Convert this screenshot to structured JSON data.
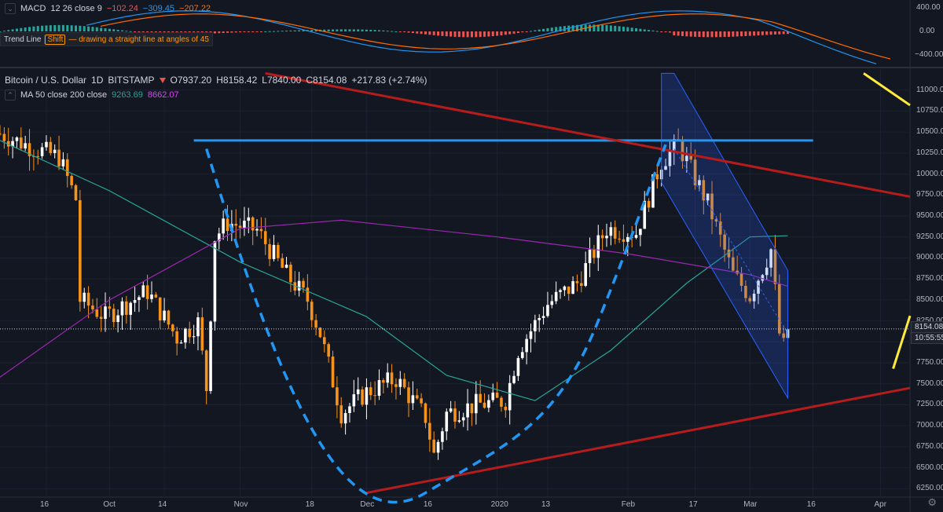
{
  "macd": {
    "name": "MACD",
    "params": "12 26 close 9",
    "v_hist": "−102.24",
    "v_macd": "−309.45",
    "v_signal": "−207.22",
    "axis": [
      "400.00",
      "0.00",
      "−400.00"
    ]
  },
  "hint": {
    "tool": "Trend Line",
    "key": "Shift",
    "text": "— drawing a straight line at angles of 45"
  },
  "symbol": {
    "title": "Bitcoin / U.S. Dollar",
    "interval": "1D",
    "exchange": "BITSTAMP",
    "open": "O7937.20",
    "high": "H8158.42",
    "low": "L7840.00",
    "close": "C8154.08",
    "change": "+217.83 (+2.74%)"
  },
  "ma": {
    "label": "MA 50 close 200 close",
    "v50": "9263.69",
    "v200": "8662.07"
  },
  "price_axis": [
    "11000.00",
    "10750.00",
    "10500.00",
    "10250.00",
    "10000.00",
    "9750.00",
    "9500.00",
    "9250.00",
    "9000.00",
    "8750.00",
    "8500.00",
    "8250.00",
    "8000.00",
    "7750.00",
    "7500.00",
    "7250.00",
    "7000.00",
    "6750.00",
    "6500.00",
    "6250.00"
  ],
  "last_price": "8154.08",
  "countdown": "10:55:55",
  "time_axis": [
    "16",
    "Oct",
    "14",
    "Nov",
    "18",
    "Dec",
    "16",
    "2020",
    "13",
    "Feb",
    "17",
    "Mar",
    "16",
    "Apr"
  ],
  "colors": {
    "bg": "#131722",
    "up": "#ffffff",
    "down": "#f7931a",
    "ma50": "#26a69a",
    "ma200": "#9c27b0",
    "blue": "#2196f3",
    "red": "#b71c1c",
    "yellow": "#ffeb3b",
    "channel": "#2962ff"
  },
  "chart_data": {
    "type": "candlestick",
    "title": "Bitcoin / U.S. Dollar",
    "interval": "1D",
    "y_range": [
      6150,
      11250
    ],
    "x_range": [
      "2019-09-05",
      "2020-04-08"
    ],
    "close_path": [
      [
        "2019-09-05",
        10480
      ],
      [
        "2019-09-12",
        10330
      ],
      [
        "2019-09-19",
        10200
      ],
      [
        "2019-09-23",
        9700
      ],
      [
        "2019-09-24",
        8500
      ],
      [
        "2019-09-30",
        8300
      ],
      [
        "2019-10-10",
        8600
      ],
      [
        "2019-10-17",
        8050
      ],
      [
        "2019-10-22",
        8230
      ],
      [
        "2019-10-24",
        7450
      ],
      [
        "2019-10-26",
        9250
      ],
      [
        "2019-10-29",
        9420
      ],
      [
        "2019-11-05",
        9330
      ],
      [
        "2019-11-12",
        8800
      ],
      [
        "2019-11-17",
        8500
      ],
      [
        "2019-11-20",
        8100
      ],
      [
        "2019-11-25",
        7150
      ],
      [
        "2019-12-01",
        7400
      ],
      [
        "2019-12-08",
        7560
      ],
      [
        "2019-12-15",
        7100
      ],
      [
        "2019-12-17",
        6650
      ],
      [
        "2019-12-20",
        7150
      ],
      [
        "2019-12-27",
        7250
      ],
      [
        "2020-01-03",
        7300
      ],
      [
        "2020-01-06",
        7900
      ],
      [
        "2020-01-13",
        8450
      ],
      [
        "2020-01-20",
        8700
      ],
      [
        "2020-01-27",
        9350
      ],
      [
        "2020-02-03",
        9300
      ],
      [
        "2020-02-09",
        10150
      ],
      [
        "2020-02-13",
        10350
      ],
      [
        "2020-02-20",
        9650
      ],
      [
        "2020-02-26",
        8800
      ],
      [
        "2020-03-01",
        8550
      ],
      [
        "2020-03-06",
        9100
      ],
      [
        "2020-03-08",
        8100
      ],
      [
        "2020-03-09",
        7940
      ],
      [
        "2020-03-10",
        8154
      ]
    ],
    "ma50_path": [
      [
        "2019-09-05",
        10400
      ],
      [
        "2019-10-01",
        9800
      ],
      [
        "2019-11-01",
        8950
      ],
      [
        "2019-12-01",
        8300
      ],
      [
        "2019-12-20",
        7600
      ],
      [
        "2020-01-10",
        7300
      ],
      [
        "2020-01-28",
        7900
      ],
      [
        "2020-02-15",
        8700
      ],
      [
        "2020-03-01",
        9250
      ],
      [
        "2020-03-10",
        9264
      ]
    ],
    "ma200_path": [
      [
        "2019-09-05",
        7580
      ],
      [
        "2019-10-01",
        8500
      ],
      [
        "2019-11-01",
        9350
      ],
      [
        "2019-11-25",
        9450
      ],
      [
        "2020-01-01",
        9250
      ],
      [
        "2020-02-01",
        9050
      ],
      [
        "2020-03-01",
        8800
      ],
      [
        "2020-03-10",
        8662
      ]
    ],
    "annotations": [
      "resistance line at 10400",
      "descending resistance",
      "ascending support",
      "descending channel",
      "rounded bottom"
    ]
  }
}
